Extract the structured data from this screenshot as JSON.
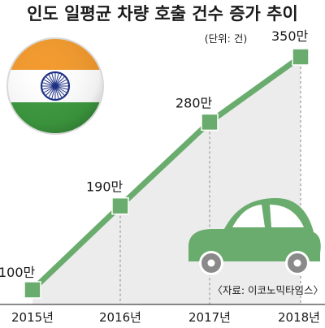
{
  "chart_data": {
    "type": "line",
    "title": "인도 일평균 차량 호출 건수 증가 추이",
    "unit_note": "(단위: 건)",
    "source": "〈자료: 이코노믹타임스〉",
    "categories": [
      "2015년",
      "2016년",
      "2017년",
      "2018년"
    ],
    "values": [
      1000000,
      1900000,
      2800000,
      3500000
    ],
    "data_labels": [
      "100만",
      "190만",
      "280만",
      "350만"
    ],
    "ylim": [
      1000000,
      3500000
    ],
    "colors": {
      "line": "#6aac6d",
      "marker": "#6aac6d",
      "car_body": "#6aac6d",
      "car_wheel": "#8a8a8a",
      "area": "#ececec"
    },
    "decorations": [
      "india-flag-icon",
      "car-icon"
    ]
  }
}
